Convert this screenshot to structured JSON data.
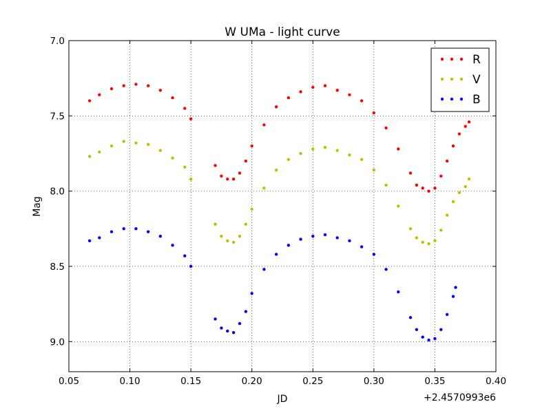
{
  "chart_data": {
    "type": "scatter",
    "title": "W UMa - light curve",
    "xlabel": "JD",
    "ylabel": "Mag",
    "x_offset_label": "+2.4570993e6",
    "xlim": [
      0.05,
      0.4
    ],
    "ylim": [
      7.0,
      9.2
    ],
    "y_inverted": true,
    "x_ticks": [
      0.05,
      0.1,
      0.15,
      0.2,
      0.25,
      0.3,
      0.35,
      0.4
    ],
    "x_tick_labels": [
      "0.05",
      "0.10",
      "0.15",
      "0.20",
      "0.25",
      "0.30",
      "0.35",
      "0.40"
    ],
    "y_ticks": [
      7.0,
      7.5,
      8.0,
      8.5,
      9.0
    ],
    "y_tick_labels": [
      "7.0",
      "7.5",
      "8.0",
      "8.5",
      "9.0"
    ],
    "grid": true,
    "legend": {
      "position": "top-right"
    },
    "series": [
      {
        "name": "R",
        "color": "#ff0000",
        "points": [
          [
            0.067,
            7.4
          ],
          [
            0.075,
            7.36
          ],
          [
            0.085,
            7.32
          ],
          [
            0.095,
            7.3
          ],
          [
            0.105,
            7.29
          ],
          [
            0.115,
            7.3
          ],
          [
            0.125,
            7.33
          ],
          [
            0.135,
            7.38
          ],
          [
            0.145,
            7.45
          ],
          [
            0.15,
            7.52
          ],
          [
            0.17,
            7.83
          ],
          [
            0.175,
            7.9
          ],
          [
            0.18,
            7.92
          ],
          [
            0.185,
            7.92
          ],
          [
            0.19,
            7.88
          ],
          [
            0.195,
            7.8
          ],
          [
            0.2,
            7.7
          ],
          [
            0.21,
            7.56
          ],
          [
            0.22,
            7.44
          ],
          [
            0.23,
            7.38
          ],
          [
            0.24,
            7.34
          ],
          [
            0.25,
            7.31
          ],
          [
            0.26,
            7.3
          ],
          [
            0.27,
            7.33
          ],
          [
            0.28,
            7.36
          ],
          [
            0.29,
            7.4
          ],
          [
            0.3,
            7.48
          ],
          [
            0.31,
            7.58
          ],
          [
            0.32,
            7.72
          ],
          [
            0.33,
            7.88
          ],
          [
            0.335,
            7.96
          ],
          [
            0.34,
            7.98
          ],
          [
            0.345,
            8.0
          ],
          [
            0.35,
            7.98
          ],
          [
            0.355,
            7.9
          ],
          [
            0.36,
            7.8
          ],
          [
            0.365,
            7.7
          ],
          [
            0.37,
            7.62
          ],
          [
            0.375,
            7.57
          ],
          [
            0.378,
            7.54
          ]
        ]
      },
      {
        "name": "V",
        "color": "#bfbf00",
        "points": [
          [
            0.067,
            7.77
          ],
          [
            0.075,
            7.74
          ],
          [
            0.085,
            7.7
          ],
          [
            0.095,
            7.67
          ],
          [
            0.105,
            7.68
          ],
          [
            0.115,
            7.69
          ],
          [
            0.125,
            7.73
          ],
          [
            0.135,
            7.78
          ],
          [
            0.145,
            7.84
          ],
          [
            0.15,
            7.92
          ],
          [
            0.17,
            8.22
          ],
          [
            0.175,
            8.3
          ],
          [
            0.18,
            8.33
          ],
          [
            0.185,
            8.34
          ],
          [
            0.19,
            8.3
          ],
          [
            0.195,
            8.22
          ],
          [
            0.2,
            8.12
          ],
          [
            0.21,
            7.98
          ],
          [
            0.22,
            7.86
          ],
          [
            0.23,
            7.79
          ],
          [
            0.24,
            7.75
          ],
          [
            0.25,
            7.72
          ],
          [
            0.26,
            7.71
          ],
          [
            0.27,
            7.73
          ],
          [
            0.28,
            7.76
          ],
          [
            0.29,
            7.79
          ],
          [
            0.3,
            7.86
          ],
          [
            0.31,
            7.96
          ],
          [
            0.32,
            8.1
          ],
          [
            0.33,
            8.25
          ],
          [
            0.335,
            8.31
          ],
          [
            0.34,
            8.34
          ],
          [
            0.345,
            8.35
          ],
          [
            0.35,
            8.33
          ],
          [
            0.355,
            8.26
          ],
          [
            0.36,
            8.16
          ],
          [
            0.365,
            8.07
          ],
          [
            0.37,
            8.01
          ],
          [
            0.375,
            7.97
          ],
          [
            0.378,
            7.92
          ]
        ]
      },
      {
        "name": "B",
        "color": "#0000ff",
        "points": [
          [
            0.067,
            8.33
          ],
          [
            0.075,
            8.31
          ],
          [
            0.085,
            8.27
          ],
          [
            0.095,
            8.25
          ],
          [
            0.105,
            8.25
          ],
          [
            0.115,
            8.27
          ],
          [
            0.125,
            8.3
          ],
          [
            0.135,
            8.36
          ],
          [
            0.145,
            8.43
          ],
          [
            0.15,
            8.5
          ],
          [
            0.17,
            8.85
          ],
          [
            0.175,
            8.91
          ],
          [
            0.18,
            8.93
          ],
          [
            0.185,
            8.94
          ],
          [
            0.19,
            8.88
          ],
          [
            0.195,
            8.8
          ],
          [
            0.2,
            8.68
          ],
          [
            0.21,
            8.52
          ],
          [
            0.22,
            8.42
          ],
          [
            0.23,
            8.36
          ],
          [
            0.24,
            8.32
          ],
          [
            0.25,
            8.3
          ],
          [
            0.26,
            8.29
          ],
          [
            0.27,
            8.31
          ],
          [
            0.28,
            8.33
          ],
          [
            0.29,
            8.37
          ],
          [
            0.3,
            8.42
          ],
          [
            0.31,
            8.52
          ],
          [
            0.32,
            8.67
          ],
          [
            0.33,
            8.84
          ],
          [
            0.335,
            8.92
          ],
          [
            0.34,
            8.97
          ],
          [
            0.345,
            8.99
          ],
          [
            0.35,
            8.98
          ],
          [
            0.355,
            8.92
          ],
          [
            0.36,
            8.82
          ],
          [
            0.365,
            8.7
          ],
          [
            0.367,
            8.64
          ]
        ]
      }
    ]
  }
}
